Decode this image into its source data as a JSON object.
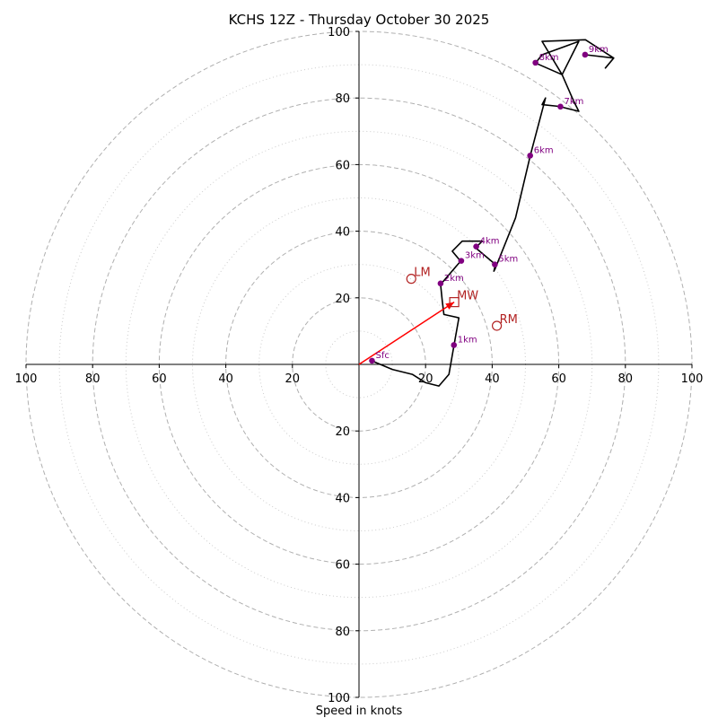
{
  "chart_data": {
    "type": "hodograph",
    "title": "KCHS 12Z - Thursday October 30 2025",
    "xlabel": "Speed in knots",
    "xlim": [
      -100,
      100
    ],
    "ylim": [
      -100,
      100
    ],
    "tick_values": [
      20,
      40,
      60,
      80,
      100
    ],
    "ring_major": [
      20,
      40,
      60,
      80,
      100
    ],
    "ring_minor": [
      10,
      30,
      50,
      70,
      90
    ],
    "trace": [
      [
        4,
        1
      ],
      [
        10,
        -1.5
      ],
      [
        16,
        -3
      ],
      [
        20,
        -5.5
      ],
      [
        24,
        -6.5
      ],
      [
        27,
        -3
      ],
      [
        28.5,
        5.5
      ],
      [
        30,
        14
      ],
      [
        25.5,
        15
      ],
      [
        25,
        19
      ],
      [
        24.5,
        24
      ],
      [
        30.5,
        31
      ],
      [
        28,
        34
      ],
      [
        31,
        37
      ],
      [
        37,
        37
      ],
      [
        35,
        35
      ],
      [
        41,
        30
      ],
      [
        40.5,
        28
      ],
      [
        41,
        29
      ],
      [
        47,
        44
      ],
      [
        51.5,
        63
      ],
      [
        56,
        80
      ],
      [
        55,
        78
      ],
      [
        60,
        77.5
      ],
      [
        66,
        76
      ],
      [
        64.5,
        79
      ],
      [
        61,
        87
      ],
      [
        53,
        90.5
      ],
      [
        55,
        93
      ],
      [
        66,
        97
      ],
      [
        61,
        87
      ],
      [
        55,
        97
      ],
      [
        68,
        97.5
      ],
      [
        76.5,
        92
      ],
      [
        74,
        89
      ],
      [
        76.5,
        92
      ],
      [
        68,
        93
      ]
    ],
    "height_markers": [
      {
        "label": "Sfc",
        "u": 3.9,
        "v": 1.1
      },
      {
        "label": "1km",
        "u": 28.5,
        "v": 5.8
      },
      {
        "label": "2km",
        "u": 24.5,
        "v": 24.3
      },
      {
        "label": "3km",
        "u": 30.7,
        "v": 31.1
      },
      {
        "label": "4km",
        "u": 35.2,
        "v": 35.4
      },
      {
        "label": "5km",
        "u": 40.8,
        "v": 30.0
      },
      {
        "label": "6km",
        "u": 51.4,
        "v": 62.7
      },
      {
        "label": "7km",
        "u": 60.5,
        "v": 77.4
      },
      {
        "label": "8km",
        "u": 53.0,
        "v": 90.6
      },
      {
        "label": "9km",
        "u": 67.9,
        "v": 93.0
      }
    ],
    "motions": [
      {
        "label": "LM",
        "u": 15.7,
        "v": 25.7,
        "marker": "circle"
      },
      {
        "label": "MW",
        "u": 28.6,
        "v": 18.7,
        "marker": "square"
      },
      {
        "label": "RM",
        "u": 41.4,
        "v": 11.6,
        "marker": "circle"
      }
    ],
    "shear_vector": {
      "from": [
        0,
        0
      ],
      "to": [
        28.6,
        18.7
      ]
    },
    "colors": {
      "trace": "#000000",
      "markers": "#800080",
      "motions": "#b22222",
      "shear": "#ff0000",
      "rings": "#b0b0b0"
    }
  }
}
